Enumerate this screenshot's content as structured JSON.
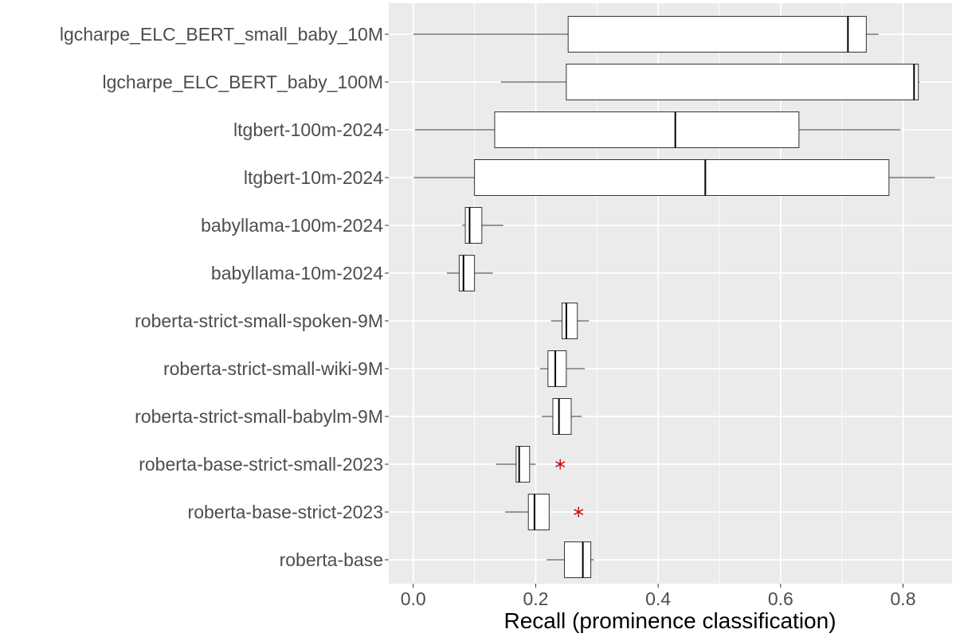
{
  "chart_data": {
    "type": "boxplot",
    "title": "",
    "xlabel": "Recall (prominence classification)",
    "ylabel": "",
    "xlim": [
      -0.04,
      0.88
    ],
    "x_ticks": [
      {
        "value": 0.0,
        "label": "0.0"
      },
      {
        "value": 0.2,
        "label": "0.2"
      },
      {
        "value": 0.4,
        "label": "0.4"
      },
      {
        "value": 0.6,
        "label": "0.6"
      },
      {
        "value": 0.8,
        "label": "0.8"
      }
    ],
    "grid": true,
    "legend": "none",
    "colors": {
      "panel": "#ebebeb",
      "grid": "#ffffff",
      "box_fill": "#ffffff",
      "box_stroke": "#333333",
      "outlier": "#cc0000"
    },
    "categories": [
      "lgcharpe_ELC_BERT_small_baby_10M",
      "lgcharpe_ELC_BERT_baby_100M",
      "ltgbert-100m-2024",
      "ltgbert-10m-2024",
      "babyllama-100m-2024",
      "babyllama-10m-2024",
      "roberta-strict-small-spoken-9M",
      "roberta-strict-small-wiki-9M",
      "roberta-strict-small-babylm-9M",
      "roberta-base-strict-small-2023",
      "roberta-base-strict-2023",
      "roberta-base"
    ],
    "boxes": [
      {
        "min": 0.0,
        "q1": 0.253,
        "median": 0.71,
        "q3": 0.74,
        "max": 0.76,
        "outliers": []
      },
      {
        "min": 0.143,
        "q1": 0.25,
        "median": 0.818,
        "q3": 0.825,
        "max": 0.827,
        "outliers": []
      },
      {
        "min": 0.003,
        "q1": 0.133,
        "median": 0.428,
        "q3": 0.63,
        "max": 0.796,
        "outliers": []
      },
      {
        "min": 0.001,
        "q1": 0.1,
        "median": 0.477,
        "q3": 0.777,
        "max": 0.852,
        "outliers": []
      },
      {
        "min": 0.08,
        "q1": 0.085,
        "median": 0.092,
        "q3": 0.112,
        "max": 0.147,
        "outliers": []
      },
      {
        "min": 0.055,
        "q1": 0.075,
        "median": 0.082,
        "q3": 0.1,
        "max": 0.13,
        "outliers": []
      },
      {
        "min": 0.225,
        "q1": 0.243,
        "median": 0.25,
        "q3": 0.268,
        "max": 0.287,
        "outliers": []
      },
      {
        "min": 0.207,
        "q1": 0.22,
        "median": 0.232,
        "q3": 0.25,
        "max": 0.28,
        "outliers": []
      },
      {
        "min": 0.21,
        "q1": 0.228,
        "median": 0.238,
        "q3": 0.258,
        "max": 0.275,
        "outliers": []
      },
      {
        "min": 0.135,
        "q1": 0.168,
        "median": 0.173,
        "q3": 0.19,
        "max": 0.2,
        "outliers": [
          0.24
        ]
      },
      {
        "min": 0.15,
        "q1": 0.188,
        "median": 0.198,
        "q3": 0.222,
        "max": 0.222,
        "outliers": [
          0.27
        ]
      },
      {
        "min": 0.218,
        "q1": 0.247,
        "median": 0.277,
        "q3": 0.29,
        "max": 0.295,
        "outliers": []
      }
    ]
  }
}
